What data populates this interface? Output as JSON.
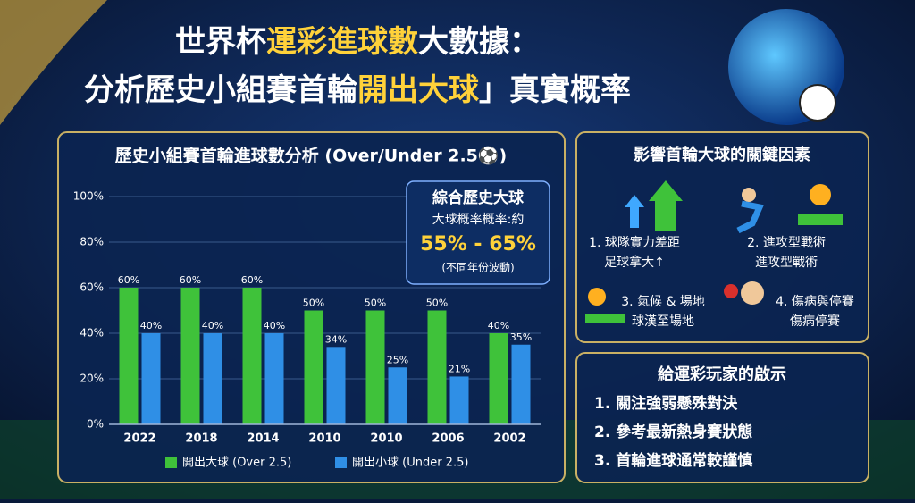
{
  "header": {
    "title_line1": [
      "世界杯",
      "運彩進球數",
      "大數據："
    ],
    "title_line2": [
      "分析歷史小組賽首輪",
      "開出大球",
      "」真實概率"
    ]
  },
  "chart_data": {
    "type": "bar",
    "title": "歷史小組賽首輪進球數分析 (Over/Under 2.5⚽)",
    "categories": [
      "2022",
      "2018",
      "2014",
      "2010",
      "2010",
      "2006",
      "2002"
    ],
    "series": [
      {
        "name": "開出大球 (Over 2.5)",
        "color": "#3fc23a",
        "values": [
          60,
          60,
          60,
          50,
          50,
          50,
          40
        ],
        "value_labels": [
          "60%",
          "60%",
          "60%",
          "50%",
          "50%",
          "50%",
          "40%"
        ]
      },
      {
        "name": "開出小球 (Under 2.5)",
        "color": "#2f8fe6",
        "values": [
          40,
          40,
          40,
          34,
          25,
          21,
          35
        ],
        "value_labels": [
          "40%",
          "40%",
          "40%",
          "34%",
          "25%",
          "21%",
          "35%"
        ]
      }
    ],
    "ylim": [
      0,
      100
    ],
    "yticks": [
      {
        "value": 0,
        "label": "0%"
      },
      {
        "value": 20,
        "label": "20%"
      },
      {
        "value": 40,
        "label": "40%"
      },
      {
        "value": 60,
        "label": "60%"
      },
      {
        "value": 80,
        "label": "80%"
      },
      {
        "value": 100,
        "label": "100%"
      }
    ],
    "grid": true,
    "callout": {
      "title": "綜合歷史大球",
      "line1": "大球概率概率:約",
      "range": "55% - 65%",
      "note": "(不同年份波動)"
    }
  },
  "factors": {
    "title": "影響首輪大球的關鍵因素",
    "items": [
      {
        "label": "1. 球隊實力差距",
        "sub": "足球拿大↑"
      },
      {
        "label": "2. 進攻型戰術",
        "sub": "進攻型戰術"
      },
      {
        "label": "3. 氣候 & 場地",
        "sub": "球漢至場地"
      },
      {
        "label": "4. 傷病與停賽",
        "sub": "傷病停賽"
      }
    ]
  },
  "tips": {
    "title": "給運彩玩家的啟示",
    "items": [
      "1. 關注強弱懸殊對決",
      "2. 參考最新熱身賽狀態",
      "3. 首輪進球通常較謹慎"
    ]
  }
}
